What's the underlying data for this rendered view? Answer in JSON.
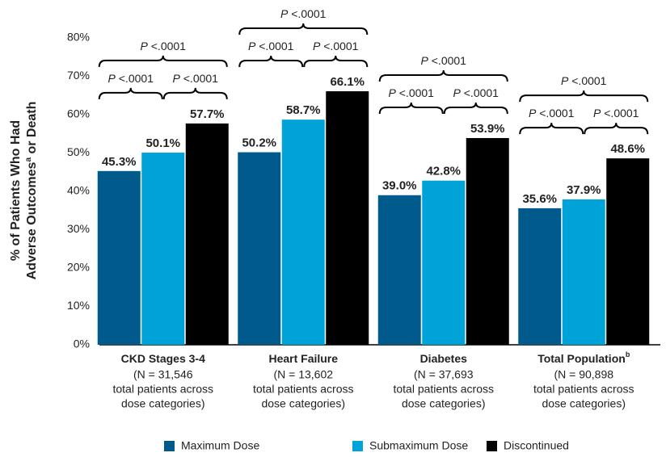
{
  "chart_data": {
    "type": "bar",
    "y_label_lines": [
      "% of Patients Who Had",
      "Adverse Outcomes"
    ],
    "y_label_sup": "a",
    "y_label_tail": " or Death",
    "categories": [
      "CKD Stages 3-4",
      "Heart Failure",
      "Diabetes",
      "Total Population"
    ],
    "category_sups": [
      null,
      null,
      null,
      "b"
    ],
    "category_sublabels": [
      [
        "(N = 31,546",
        "total patients across",
        "dose categories)"
      ],
      [
        "(N = 13,602",
        "total patients across",
        "dose categories)"
      ],
      [
        "(N = 37,693",
        "total patients across",
        "dose categories)"
      ],
      [
        "(N = 90,898",
        "total patients across",
        "dose categories)"
      ]
    ],
    "series": [
      {
        "name": "Maximum Dose",
        "color": "#005a8c",
        "values": [
          45.3,
          50.2,
          39.0,
          35.6
        ],
        "value_labels": [
          "45.3%",
          "50.2%",
          "39.0%",
          "35.6%"
        ]
      },
      {
        "name": "Submaximum Dose",
        "color": "#00a3d7",
        "values": [
          50.1,
          58.7,
          42.8,
          37.9
        ],
        "value_labels": [
          "50.1%",
          "58.7%",
          "42.8%",
          "37.9%"
        ]
      },
      {
        "name": "Discontinued",
        "color": "#000000",
        "values": [
          57.7,
          66.1,
          53.9,
          48.6
        ],
        "value_labels": [
          "57.7%",
          "66.1%",
          "53.9%",
          "48.6%"
        ]
      }
    ],
    "annotations": [
      {
        "from": 0,
        "to": 1,
        "label": "P <.0001"
      },
      {
        "from": 1,
        "to": 2,
        "label": "P <.0001"
      },
      {
        "from": 0,
        "to": 2,
        "label": "P <.0001"
      }
    ],
    "ylim": [
      0,
      80
    ],
    "yticks": [
      {
        "value": 0,
        "label": "0%"
      },
      {
        "value": 10,
        "label": "10%"
      },
      {
        "value": 20,
        "label": "20%"
      },
      {
        "value": 30,
        "label": "30%"
      },
      {
        "value": 40,
        "label": "40%"
      },
      {
        "value": 50,
        "label": "50%"
      },
      {
        "value": 60,
        "label": "60%"
      },
      {
        "value": 70,
        "label": "70%"
      },
      {
        "value": 80,
        "label": "80%"
      }
    ],
    "grid": false,
    "legend": "bottom"
  }
}
